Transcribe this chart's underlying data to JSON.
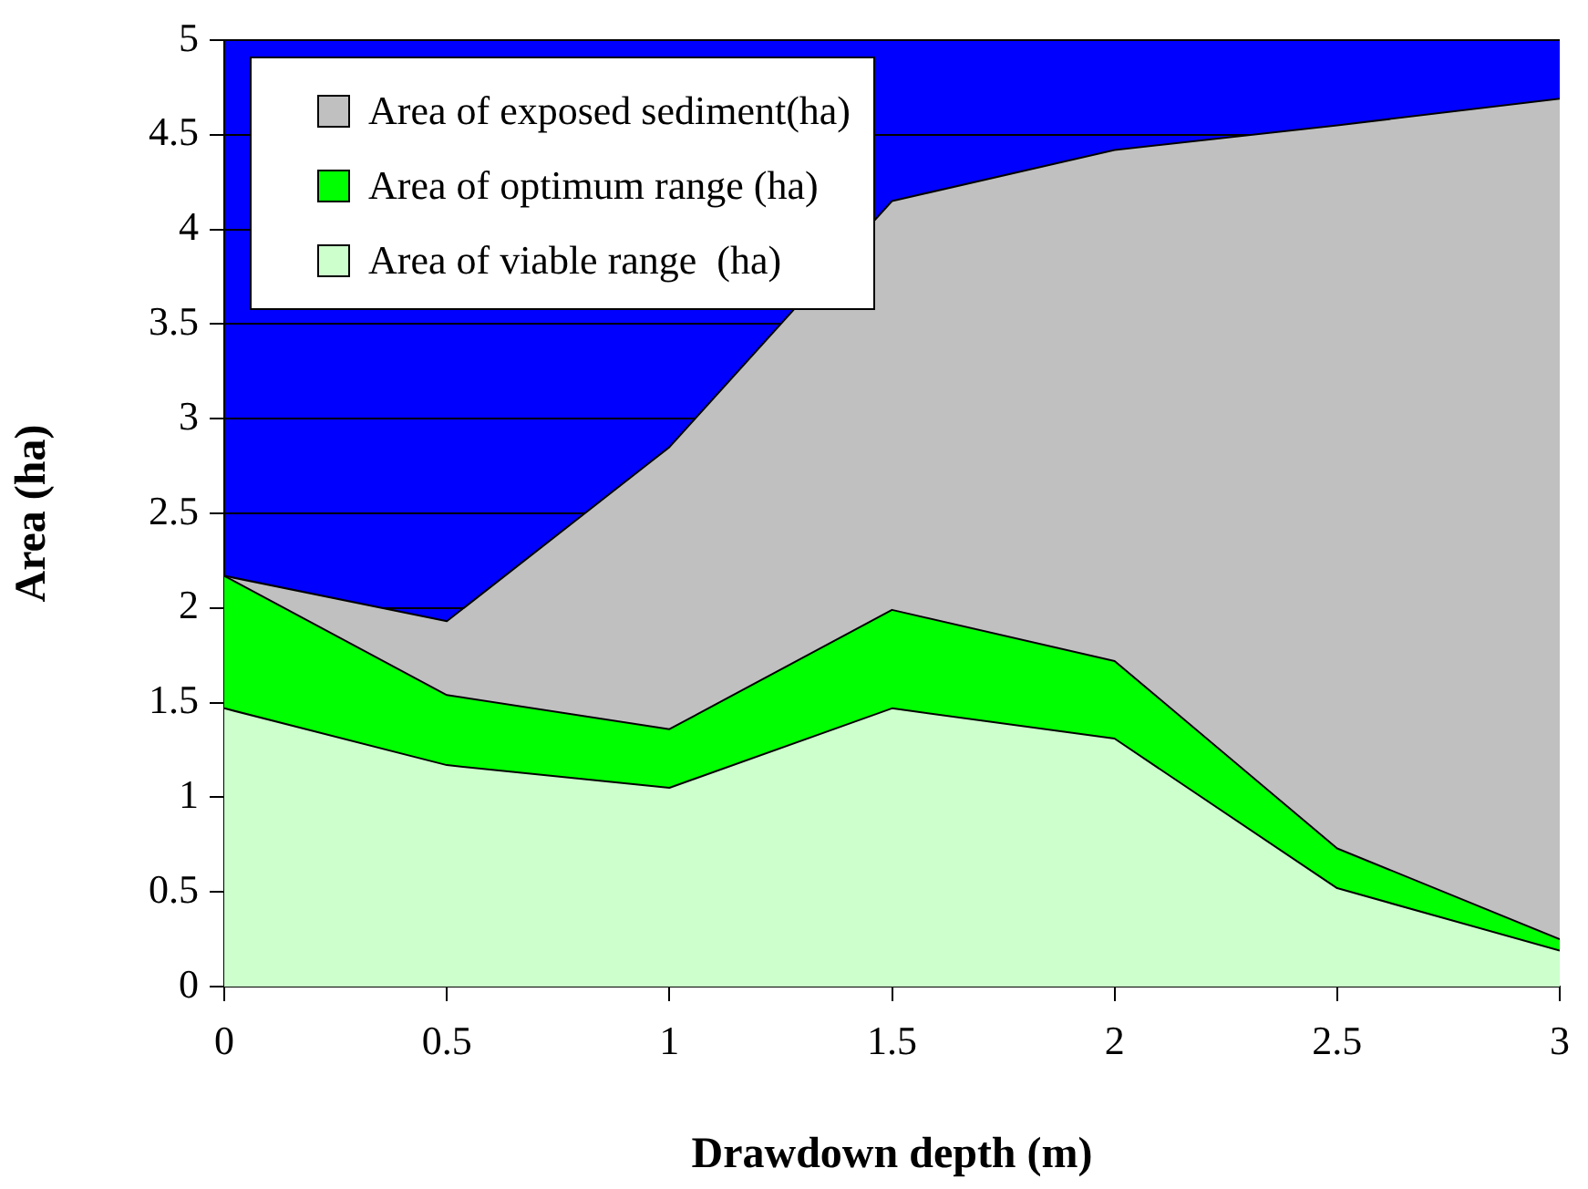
{
  "chart_data": {
    "type": "area",
    "xlabel": "Drawdown depth (m)",
    "ylabel": "Area (ha)",
    "x": [
      0,
      0.5,
      1,
      1.5,
      2,
      2.5,
      3
    ],
    "stacked": true,
    "series": [
      {
        "name": "Area of viable range  (ha)",
        "color": "#ccffcc",
        "values": [
          1.47,
          1.17,
          1.05,
          1.47,
          1.31,
          0.52,
          0.19
        ]
      },
      {
        "name": "Area of optimum range (ha)",
        "color": "#00ff00",
        "values": [
          0.7,
          0.37,
          0.31,
          0.52,
          0.41,
          0.21,
          0.06
        ]
      },
      {
        "name": "Area of exposed sediment(ha)",
        "color": "#c0c0c0",
        "values": [
          0,
          0.39,
          1.49,
          2.16,
          2.7,
          3.82,
          4.44
        ]
      }
    ],
    "xlim": [
      0,
      3
    ],
    "xticks": [
      0,
      0.5,
      1,
      1.5,
      2,
      2.5,
      3
    ],
    "ylim": [
      0,
      5
    ],
    "yticks": [
      0,
      0.5,
      1,
      1.5,
      2,
      2.5,
      3,
      3.5,
      4,
      4.5,
      5
    ],
    "grid": "y",
    "legend": "top left",
    "bands": [
      {
        "axis": "y",
        "from": 1.9,
        "to": 5,
        "color": "#0000ff"
      }
    ]
  }
}
